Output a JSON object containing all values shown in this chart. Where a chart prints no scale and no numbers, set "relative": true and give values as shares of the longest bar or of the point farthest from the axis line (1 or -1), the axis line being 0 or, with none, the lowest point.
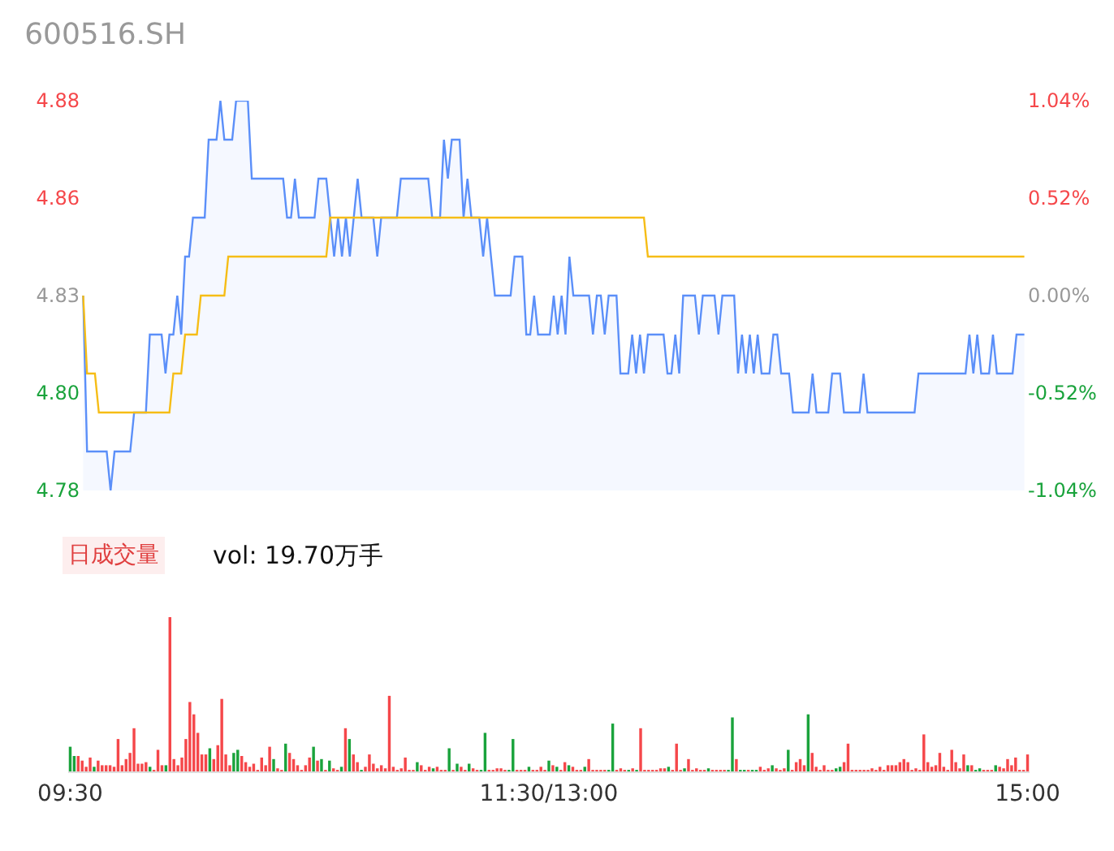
{
  "chart_data": [
    {
      "type": "line",
      "title": "600516.SH",
      "ylim": [
        4.78,
        4.88
      ],
      "yticks": [
        4.78,
        {
          "value": 4.805,
          "label": "4.80"
        },
        4.83,
        {
          "value": 4.855,
          "label": "4.86"
        },
        4.88
      ],
      "y2lim": [
        -1.04,
        1.04
      ],
      "y2ticks": [
        {
          "value": -1.04,
          "label": "-1.04%"
        },
        {
          "value": -0.52,
          "label": "-0.52%"
        },
        {
          "value": 0,
          "label": "0.00%"
        },
        {
          "value": 0.52,
          "label": "0.52%"
        },
        {
          "value": 1.04,
          "label": "1.04%"
        }
      ],
      "tick_labels": "y",
      "categories": [
        null,
        null,
        null,
        null,
        null,
        null,
        null,
        null,
        null,
        null,
        null,
        null,
        null,
        null,
        null,
        null,
        null,
        null,
        null,
        null,
        null,
        null,
        null,
        null,
        null,
        null,
        null,
        null,
        null,
        null,
        null,
        null,
        null,
        null,
        null,
        null,
        null,
        null,
        null,
        null,
        null,
        null,
        null,
        null,
        null,
        null,
        null,
        null,
        null,
        null,
        null,
        null,
        null,
        null,
        null,
        null,
        null,
        null,
        null,
        null,
        null,
        null,
        null,
        null,
        null,
        null,
        null,
        null,
        null,
        null,
        null,
        null,
        null,
        null,
        null,
        null,
        null,
        null,
        null,
        null,
        null,
        null,
        null,
        null,
        null,
        null,
        null,
        null,
        null,
        null,
        null,
        null,
        null,
        null,
        null,
        null,
        null,
        null,
        null,
        null,
        null,
        null,
        null,
        null,
        null,
        null,
        null,
        null,
        null,
        null,
        null,
        null,
        null,
        null,
        null,
        null,
        null,
        null,
        null,
        null,
        null,
        null,
        null,
        null,
        null,
        null,
        null,
        null,
        null,
        null,
        null,
        null,
        null,
        null,
        null,
        null,
        null,
        null,
        null,
        null,
        null,
        null,
        null,
        null,
        null,
        null,
        null,
        null,
        null,
        null,
        null,
        null,
        null,
        null,
        null,
        null,
        null,
        null,
        null,
        null,
        null,
        null,
        null,
        null,
        null,
        null,
        null,
        null,
        null,
        null,
        null,
        null,
        null,
        null,
        null,
        null,
        null,
        null,
        null,
        null,
        null,
        null,
        null,
        null,
        null,
        null,
        null,
        null,
        null,
        null,
        null,
        null,
        null,
        null,
        null,
        null,
        null,
        null,
        null,
        null,
        null,
        null,
        null,
        null,
        null,
        null,
        null,
        null,
        null,
        null,
        null,
        null,
        null,
        null,
        null,
        null,
        null,
        null,
        null,
        null,
        null,
        null,
        null,
        null,
        null,
        null,
        null,
        null,
        null,
        null,
        null,
        null,
        null,
        null,
        null,
        null,
        null,
        null,
        null,
        null,
        null
      ],
      "series": [
        {
          "type": "area",
          "color": "#5b8ff9",
          "values": [
            4.83,
            4.79,
            4.79,
            4.79,
            4.79,
            4.79,
            4.79,
            4.78,
            4.79,
            4.79,
            4.79,
            4.79,
            4.79,
            4.8,
            4.8,
            4.8,
            4.8,
            4.82,
            4.82,
            4.82,
            4.82,
            4.81,
            4.82,
            4.82,
            4.83,
            4.82,
            4.84,
            4.84,
            4.85,
            4.85,
            4.85,
            4.85,
            4.87,
            4.87,
            4.87,
            4.88,
            4.87,
            4.87,
            4.87,
            4.88,
            4.88,
            4.88,
            4.88,
            4.86,
            4.86,
            4.86,
            4.86,
            4.86,
            4.86,
            4.86,
            4.86,
            4.86,
            4.85,
            4.85,
            4.86,
            4.85,
            4.85,
            4.85,
            4.85,
            4.85,
            4.86,
            4.86,
            4.86,
            4.85,
            4.84,
            4.85,
            4.84,
            4.85,
            4.84,
            4.85,
            4.86,
            4.85,
            4.85,
            4.85,
            4.85,
            4.84,
            4.85,
            4.85,
            4.85,
            4.85,
            4.85,
            4.86,
            4.86,
            4.86,
            4.86,
            4.86,
            4.86,
            4.86,
            4.86,
            4.85,
            4.85,
            4.85,
            4.87,
            4.86,
            4.87,
            4.87,
            4.87,
            4.85,
            4.86,
            4.85,
            4.85,
            4.85,
            4.84,
            4.85,
            4.84,
            4.83,
            4.83,
            4.83,
            4.83,
            4.83,
            4.84,
            4.84,
            4.84,
            4.82,
            4.82,
            4.83,
            4.82,
            4.82,
            4.82,
            4.82,
            4.83,
            4.82,
            4.83,
            4.82,
            4.84,
            4.83,
            4.83,
            4.83,
            4.83,
            4.83,
            4.82,
            4.83,
            4.83,
            4.82,
            4.83,
            4.83,
            4.83,
            4.81,
            4.81,
            4.81,
            4.82,
            4.81,
            4.82,
            4.81,
            4.82,
            4.82,
            4.82,
            4.82,
            4.82,
            4.81,
            4.81,
            4.82,
            4.81,
            4.83,
            4.83,
            4.83,
            4.83,
            4.82,
            4.83,
            4.83,
            4.83,
            4.83,
            4.82,
            4.83,
            4.83,
            4.83,
            4.83,
            4.81,
            4.82,
            4.81,
            4.82,
            4.81,
            4.82,
            4.81,
            4.81,
            4.81,
            4.82,
            4.82,
            4.81,
            4.81,
            4.81,
            4.8,
            4.8,
            4.8,
            4.8,
            4.8,
            4.81,
            4.8,
            4.8,
            4.8,
            4.8,
            4.81,
            4.81,
            4.81,
            4.8,
            4.8,
            4.8,
            4.8,
            4.8,
            4.81,
            4.8,
            4.8,
            4.8,
            4.8,
            4.8,
            4.8,
            4.8,
            4.8,
            4.8,
            4.8,
            4.8,
            4.8,
            4.8,
            4.81,
            4.81,
            4.81,
            4.81,
            4.81,
            4.81,
            4.81,
            4.81,
            4.81,
            4.81,
            4.81,
            4.81,
            4.81,
            4.82,
            4.81,
            4.82,
            4.81,
            4.81,
            4.81,
            4.82,
            4.81,
            4.81,
            4.81,
            4.81,
            4.81,
            4.82,
            4.82,
            4.82
          ]
        },
        {
          "type": "line",
          "color": "#f6bd16",
          "values": [
            4.83,
            4.81,
            4.81,
            4.81,
            4.8,
            4.8,
            4.8,
            4.8,
            4.8,
            4.8,
            4.8,
            4.8,
            4.8,
            4.8,
            4.8,
            4.8,
            4.8,
            4.8,
            4.8,
            4.8,
            4.8,
            4.8,
            4.8,
            4.81,
            4.81,
            4.81,
            4.82,
            4.82,
            4.82,
            4.82,
            4.83,
            4.83,
            4.83,
            4.83,
            4.83,
            4.83,
            4.83,
            4.84,
            4.84,
            4.84,
            4.84,
            4.84,
            4.84,
            4.84,
            4.84,
            4.84,
            4.84,
            4.84,
            4.84,
            4.84,
            4.84,
            4.84,
            4.84,
            4.84,
            4.84,
            4.84,
            4.84,
            4.84,
            4.84,
            4.84,
            4.84,
            4.84,
            4.84,
            4.85,
            4.85,
            4.85,
            4.85,
            4.85,
            4.85,
            4.85,
            4.85,
            4.85,
            4.85,
            4.85,
            4.85,
            4.85,
            4.85,
            4.85,
            4.85,
            4.85,
            4.85,
            4.85,
            4.85,
            4.85,
            4.85,
            4.85,
            4.85,
            4.85,
            4.85,
            4.85,
            4.85,
            4.85,
            4.85,
            4.85,
            4.85,
            4.85,
            4.85,
            4.85,
            4.85,
            4.85,
            4.85,
            4.85,
            4.85,
            4.85,
            4.85,
            4.85,
            4.85,
            4.85,
            4.85,
            4.85,
            4.85,
            4.85,
            4.85,
            4.85,
            4.85,
            4.85,
            4.85,
            4.85,
            4.85,
            4.85,
            4.85,
            4.85,
            4.85,
            4.85,
            4.85,
            4.85,
            4.85,
            4.85,
            4.85,
            4.85,
            4.85,
            4.85,
            4.85,
            4.85,
            4.85,
            4.85,
            4.85,
            4.85,
            4.85,
            4.85,
            4.85,
            4.85,
            4.85,
            4.85,
            4.84,
            4.84,
            4.84,
            4.84,
            4.84,
            4.84,
            4.84,
            4.84,
            4.84,
            4.84,
            4.84,
            4.84,
            4.84,
            4.84,
            4.84,
            4.84,
            4.84,
            4.84,
            4.84,
            4.84,
            4.84,
            4.84,
            4.84,
            4.84,
            4.84,
            4.84,
            4.84,
            4.84,
            4.84,
            4.84,
            4.84,
            4.84,
            4.84,
            4.84,
            4.84,
            4.84,
            4.84,
            4.84,
            4.84,
            4.84,
            4.84,
            4.84,
            4.84,
            4.84,
            4.84,
            4.84,
            4.84,
            4.84,
            4.84,
            4.84,
            4.84,
            4.84,
            4.84,
            4.84,
            4.84,
            4.84,
            4.84,
            4.84,
            4.84,
            4.84,
            4.84,
            4.84,
            4.84,
            4.84,
            4.84,
            4.84,
            4.84,
            4.84,
            4.84,
            4.84,
            4.84,
            4.84,
            4.84,
            4.84,
            4.84,
            4.84,
            4.84,
            4.84,
            4.84,
            4.84,
            4.84,
            4.84,
            4.84,
            4.84,
            4.84,
            4.84,
            4.84,
            4.84,
            4.84,
            4.84,
            4.84,
            4.84,
            4.84,
            4.84,
            4.84,
            4.84,
            4.84
          ]
        }
      ]
    },
    {
      "type": "bar",
      "relative": true,
      "tick_labels": "x",
      "categories": [
        "09:30",
        null,
        null,
        null,
        null,
        null,
        null,
        null,
        null,
        null,
        null,
        null,
        null,
        null,
        null,
        null,
        null,
        null,
        null,
        null,
        null,
        null,
        null,
        null,
        null,
        null,
        null,
        null,
        null,
        null,
        null,
        null,
        null,
        null,
        null,
        null,
        null,
        null,
        null,
        null,
        null,
        null,
        null,
        null,
        null,
        null,
        null,
        null,
        null,
        null,
        null,
        null,
        null,
        null,
        null,
        null,
        null,
        null,
        null,
        null,
        null,
        null,
        null,
        null,
        null,
        null,
        null,
        null,
        null,
        null,
        null,
        null,
        null,
        null,
        null,
        null,
        null,
        null,
        null,
        null,
        null,
        null,
        null,
        null,
        null,
        null,
        null,
        null,
        null,
        null,
        null,
        null,
        null,
        null,
        null,
        null,
        null,
        null,
        null,
        null,
        null,
        null,
        null,
        null,
        null,
        null,
        null,
        null,
        null,
        null,
        null,
        null,
        null,
        null,
        null,
        null,
        null,
        null,
        null,
        null,
        "11:30/13:00",
        null,
        null,
        null,
        null,
        null,
        null,
        null,
        null,
        null,
        null,
        null,
        null,
        null,
        null,
        null,
        null,
        null,
        null,
        null,
        null,
        null,
        null,
        null,
        null,
        null,
        null,
        null,
        null,
        null,
        null,
        null,
        null,
        null,
        null,
        null,
        null,
        null,
        null,
        null,
        null,
        null,
        null,
        null,
        null,
        null,
        null,
        null,
        null,
        null,
        null,
        null,
        null,
        null,
        null,
        null,
        null,
        null,
        null,
        null,
        null,
        null,
        null,
        null,
        null,
        null,
        null,
        null,
        null,
        null,
        null,
        null,
        null,
        null,
        null,
        null,
        null,
        null,
        null,
        null,
        null,
        null,
        null,
        null,
        null,
        null,
        null,
        null,
        null,
        null,
        null,
        null,
        null,
        null,
        null,
        null,
        null,
        null,
        null,
        null,
        null,
        null,
        null,
        null,
        null,
        null,
        null,
        null,
        null,
        null,
        null,
        null,
        null,
        null,
        null,
        null,
        null,
        null,
        null,
        null,
        "15:00"
      ],
      "annotations": [
        "日成交量",
        "vol: 19.70万手"
      ],
      "values": [
        0.16,
        0.1,
        0.1,
        0.07,
        0.03,
        0.09,
        0.03,
        0.07,
        0.04,
        0.04,
        0.04,
        0.03,
        0.21,
        0.04,
        0.08,
        0.12,
        0.28,
        0.05,
        0.05,
        0.06,
        0.03,
        0.01,
        0.14,
        0.04,
        0.04,
        1,
        0.08,
        0.04,
        0.09,
        0.21,
        0.45,
        0.37,
        0.25,
        0.11,
        0.11,
        0.15,
        0.08,
        0.17,
        0.47,
        0.11,
        0.04,
        0.12,
        0.14,
        0.1,
        0.06,
        0.03,
        0.05,
        0.01,
        0.09,
        0.04,
        0.16,
        0.08,
        0.02,
        0.01,
        0.18,
        0.12,
        0.08,
        0.04,
        0.01,
        0.04,
        0.09,
        0.16,
        0.07,
        0.08,
        0.01,
        0.07,
        0.02,
        0.01,
        0.03,
        0.28,
        0.21,
        0.11,
        0.06,
        0.01,
        0.03,
        0.11,
        0.05,
        0.02,
        0.04,
        0.02,
        0.49,
        0.03,
        0.01,
        0.02,
        0.09,
        0.01,
        0.01,
        0.06,
        0.04,
        0.01,
        0.03,
        0.02,
        0.03,
        0.01,
        0.01,
        0.15,
        0.01,
        0.05,
        0.03,
        0.01,
        0.05,
        0.02,
        0.01,
        0.01,
        0.25,
        0.01,
        0.01,
        0.02,
        0.02,
        0.01,
        0.01,
        0.21,
        0.01,
        0.01,
        0.01,
        0.03,
        0.01,
        0.01,
        0.03,
        0.01,
        0.07,
        0.04,
        0.03,
        0.01,
        0.06,
        0.04,
        0.03,
        0.01,
        0.01,
        0.03,
        0.08,
        0.01,
        0.01,
        0.01,
        0.01,
        0.01,
        0.31,
        0.01,
        0.02,
        0.01,
        0.01,
        0.02,
        0.01,
        0.28,
        0.01,
        0.01,
        0.01,
        0.01,
        0.02,
        0.02,
        0.03,
        0.01,
        0.18,
        0.01,
        0.02,
        0.08,
        0.01,
        0.02,
        0.01,
        0.01,
        0.02,
        0.01,
        0.01,
        0.01,
        0.01,
        0.01,
        0.35,
        0.08,
        0.01,
        0.01,
        0.01,
        0.01,
        0.01,
        0.03,
        0.01,
        0.02,
        0.04,
        0.02,
        0.01,
        0.02,
        0.14,
        0.01,
        0.06,
        0.08,
        0.04,
        0.37,
        0.12,
        0.03,
        0.01,
        0.04,
        0.01,
        0.01,
        0.02,
        0.03,
        0.06,
        0.18,
        0.01,
        0.01,
        0.01,
        0.01,
        0.01,
        0.02,
        0.01,
        0.03,
        0.01,
        0.04,
        0.04,
        0.04,
        0.06,
        0.08,
        0.06,
        0.01,
        0.02,
        0.01,
        0.24,
        0.06,
        0.03,
        0.04,
        0.12,
        0.03,
        0.01,
        0.14,
        0.06,
        0.02,
        0.11,
        0.04,
        0.04,
        0.01,
        0.02,
        0.01,
        0.01,
        0.01,
        0.04,
        0.03,
        0.02,
        0.08,
        0.04,
        0.09,
        0.01,
        0.01,
        0.11
      ],
      "colors": [
        "#1aa33c",
        "#1aa33c",
        "#f5474a",
        "#f5474a",
        "#f5474a",
        "#f5474a",
        "#1aa33c",
        "#f5474a",
        "#f5474a",
        "#f5474a",
        "#f5474a",
        "#f5474a",
        "#f5474a",
        "#f5474a",
        "#f5474a",
        "#f5474a",
        "#f5474a",
        "#f5474a",
        "#f5474a",
        "#f5474a",
        "#1aa33c",
        "#f5474a",
        "#f5474a",
        "#f5474a",
        "#1aa33c",
        "#f5474a",
        "#f5474a",
        "#f5474a",
        "#f5474a",
        "#f5474a",
        "#f5474a",
        "#f5474a",
        "#f5474a",
        "#f5474a",
        "#f5474a",
        "#1aa33c",
        "#f5474a",
        "#f5474a",
        "#f5474a",
        "#f5474a",
        "#f5474a",
        "#1aa33c",
        "#1aa33c",
        "#f5474a",
        "#f5474a",
        "#f5474a",
        "#f5474a",
        "#f5474a",
        "#f5474a",
        "#f5474a",
        "#f5474a",
        "#1aa33c",
        "#f5474a",
        "#f5474a",
        "#1aa33c",
        "#f5474a",
        "#f5474a",
        "#f5474a",
        "#f5474a",
        "#f5474a",
        "#f5474a",
        "#1aa33c",
        "#f5474a",
        "#1aa33c",
        "#f5474a",
        "#1aa33c",
        "#f5474a",
        "#f5474a",
        "#1aa33c",
        "#f5474a",
        "#1aa33c",
        "#f5474a",
        "#f5474a",
        "#1aa33c",
        "#f5474a",
        "#f5474a",
        "#f5474a",
        "#f5474a",
        "#f5474a",
        "#f5474a",
        "#f5474a",
        "#f5474a",
        "#f5474a",
        "#f5474a",
        "#f5474a",
        "#f5474a",
        "#f5474a",
        "#1aa33c",
        "#f5474a",
        "#f5474a",
        "#f5474a",
        "#1aa33c",
        "#f5474a",
        "#f5474a",
        "#f5474a",
        "#1aa33c",
        "#f5474a",
        "#1aa33c",
        "#f5474a",
        "#f5474a",
        "#1aa33c",
        "#f5474a",
        "#f5474a",
        "#1aa33c",
        "#1aa33c",
        "#f5474a",
        "#f5474a",
        "#f5474a",
        "#f5474a",
        "#f5474a",
        "#1aa33c",
        "#1aa33c",
        "#f5474a",
        "#f5474a",
        "#f5474a",
        "#1aa33c",
        "#f5474a",
        "#f5474a",
        "#f5474a",
        "#f5474a",
        "#1aa33c",
        "#f5474a",
        "#1aa33c",
        "#f5474a",
        "#f5474a",
        "#1aa33c",
        "#f5474a",
        "#f5474a",
        "#f5474a",
        "#1aa33c",
        "#f5474a",
        "#f5474a",
        "#f5474a",
        "#f5474a",
        "#f5474a",
        "#1aa33c",
        "#1aa33c",
        "#f5474a",
        "#f5474a",
        "#f5474a",
        "#1aa33c",
        "#f5474a",
        "#1aa33c",
        "#f5474a",
        "#f5474a",
        "#f5474a",
        "#f5474a",
        "#f5474a",
        "#f5474a",
        "#f5474a",
        "#1aa33c",
        "#f5474a",
        "#f5474a",
        "#f5474a",
        "#1aa33c",
        "#f5474a",
        "#f5474a",
        "#f5474a",
        "#f5474a",
        "#f5474a",
        "#1aa33c",
        "#f5474a",
        "#f5474a",
        "#f5474a",
        "#f5474a",
        "#1aa33c",
        "#1aa33c",
        "#f5474a",
        "#1aa33c",
        "#1aa33c",
        "#f5474a",
        "#1aa33c",
        "#1aa33c",
        "#f5474a",
        "#f5474a",
        "#f5474a",
        "#1aa33c",
        "#f5474a",
        "#f5474a",
        "#f5474a",
        "#1aa33c",
        "#f5474a",
        "#f5474a",
        "#f5474a",
        "#f5474a",
        "#1aa33c",
        "#f5474a",
        "#f5474a",
        "#f5474a",
        "#f5474a",
        "#f5474a",
        "#f5474a",
        "#1aa33c",
        "#1aa33c",
        "#f5474a",
        "#f5474a",
        "#f5474a",
        "#f5474a",
        "#f5474a",
        "#f5474a",
        "#f5474a",
        "#f5474a",
        "#f5474a",
        "#f5474a",
        "#f5474a",
        "#f5474a",
        "#f5474a",
        "#f5474a",
        "#f5474a",
        "#f5474a",
        "#f5474a",
        "#f5474a",
        "#f5474a",
        "#f5474a",
        "#f5474a",
        "#f5474a",
        "#f5474a",
        "#f5474a",
        "#f5474a",
        "#f5474a",
        "#f5474a",
        "#f5474a",
        "#f5474a",
        "#f5474a",
        "#f5474a",
        "#1aa33c",
        "#f5474a",
        "#1aa33c",
        "#1aa33c",
        "#f5474a",
        "#f5474a",
        "#f5474a",
        "#1aa33c",
        "#f5474a",
        "#f5474a",
        "#f5474a",
        "#f5474a",
        "#f5474a",
        "#f5474a",
        "#f5474a",
        "#f5474a"
      ]
    }
  ]
}
